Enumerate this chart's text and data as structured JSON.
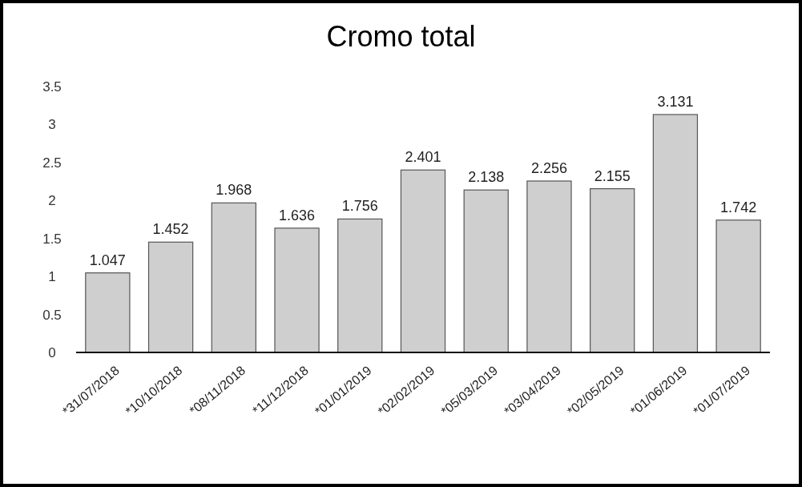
{
  "chart_data": {
    "type": "bar",
    "title": "Cromo total",
    "categories": [
      "*31/07/2018",
      "*10/10/2018",
      "*08/11/2018",
      "*11/12/2018",
      "*01/01/2019",
      "*02/02/2019",
      "*05/03/2019",
      "*03/04/2019",
      "*02/05/2019",
      "*01/06/2019",
      "*01/07/2019"
    ],
    "values": [
      1.047,
      1.452,
      1.968,
      1.636,
      1.756,
      2.401,
      2.138,
      2.256,
      2.155,
      3.131,
      1.742
    ],
    "color": "#cfcfcf",
    "ylim": [
      0,
      3.5
    ],
    "yticks": [
      0,
      0.5,
      1,
      1.5,
      2,
      2.5,
      3,
      3.5
    ],
    "grid": false,
    "data_labels": true
  }
}
